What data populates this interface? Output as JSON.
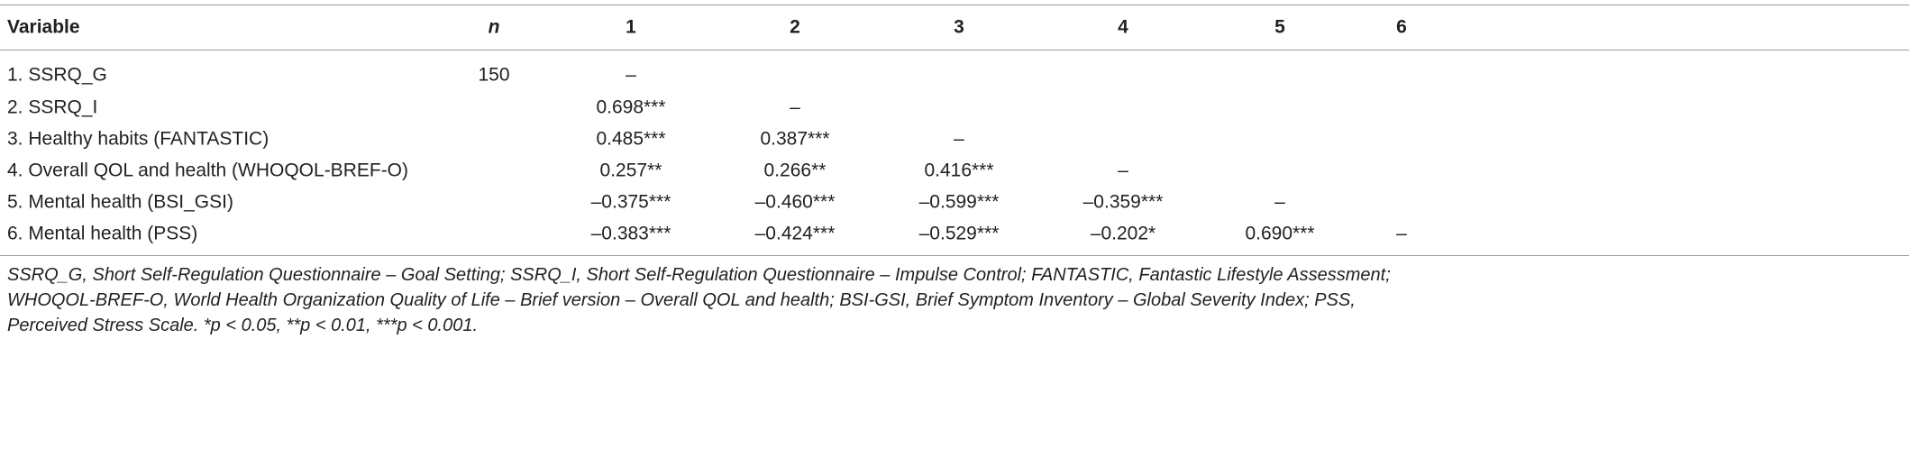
{
  "table": {
    "header": [
      "Variable",
      "n",
      "1",
      "2",
      "3",
      "4",
      "5",
      "6"
    ],
    "rows": [
      [
        "1. SSRQ_G",
        "150",
        "–",
        null,
        null,
        null,
        null,
        null
      ],
      [
        "2. SSRQ_I",
        null,
        "0.698***",
        "–",
        null,
        null,
        null,
        null
      ],
      [
        "3. Healthy habits (FANTASTIC)",
        null,
        "0.485***",
        "0.387***",
        "–",
        null,
        null,
        null
      ],
      [
        "4. Overall QOL and health (WHOQOL-BREF-O)",
        null,
        "0.257**",
        "0.266**",
        "0.416***",
        "–",
        null,
        null
      ],
      [
        "5. Mental health (BSI_GSI)",
        null,
        "–0.375***",
        "–0.460***",
        "–0.599***",
        "–0.359***",
        "–",
        null
      ],
      [
        "6. Mental health (PSS)",
        null,
        "–0.383***",
        "–0.424***",
        "–0.529***",
        "–0.202*",
        "0.690***",
        "–"
      ]
    ]
  },
  "footnote": [
    "SSRQ_G, Short Self-Regulation Questionnaire – Goal Setting; SSRQ_I, Short Self-Regulation Questionnaire – Impulse Control; FANTASTIC, Fantastic Lifestyle Assessment;",
    "WHOQOL-BREF-O, World Health Organization Quality of Life – Brief version – Overall QOL and health; BSI-GSI, Brief Symptom Inventory – Global Severity Index; PSS,",
    "Perceived Stress Scale. *p < 0.05, **p < 0.01, ***p < 0.001."
  ]
}
